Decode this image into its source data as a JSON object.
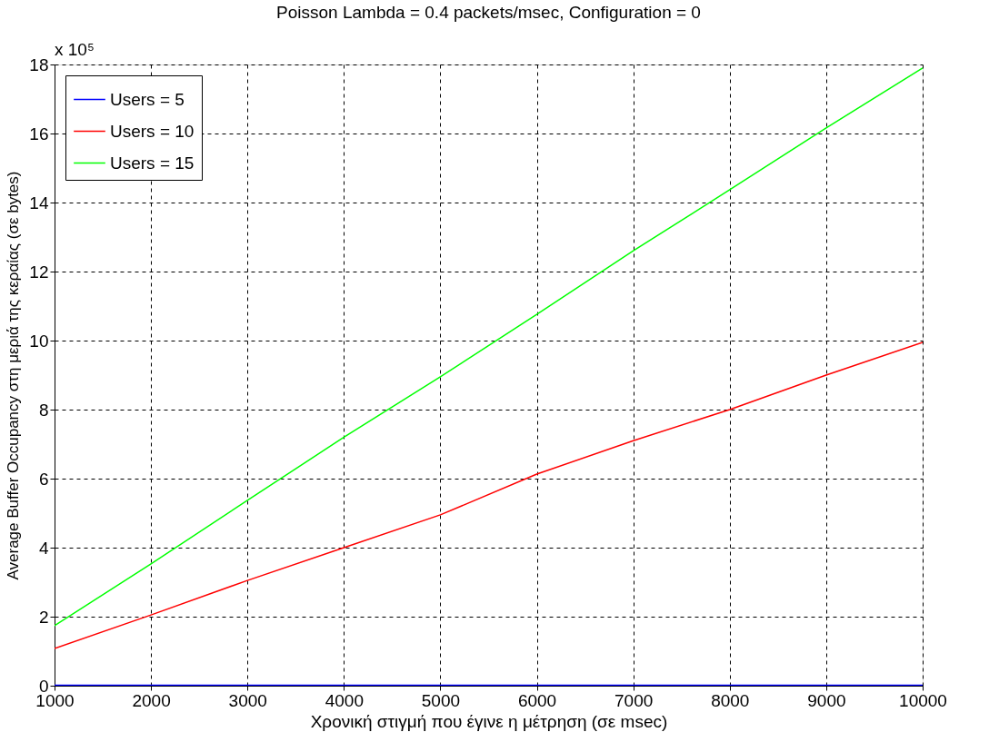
{
  "chart_data": {
    "type": "line",
    "title": "Poisson Lambda = 0.4 packets/msec, Configuration = 0",
    "xlabel": "Χρονική στιγμή που έγινε η μέτρηση (σε msec)",
    "ylabel": "Average Buffer Occupancy στη μεριά της κεραίας (σε bytes)",
    "annotations": [
      "x 10⁵"
    ],
    "x": [
      1000,
      2000,
      3000,
      4000,
      5000,
      6000,
      7000,
      8000,
      9000,
      10000
    ],
    "series": [
      {
        "name": "Users = 5",
        "color": "#0000ff",
        "values": [
          0.01,
          0.01,
          0.01,
          0.01,
          0.01,
          0.01,
          0.01,
          0.01,
          0.01,
          0.01
        ]
      },
      {
        "name": "Users = 10",
        "color": "#ff0000",
        "values": [
          1.08,
          2.05,
          3.05,
          4.0,
          4.95,
          6.13,
          7.1,
          8.0,
          9.0,
          9.95
        ]
      },
      {
        "name": "Users = 15",
        "color": "#00ff00",
        "values": [
          1.74,
          3.53,
          5.37,
          7.2,
          8.95,
          10.76,
          12.6,
          14.37,
          16.16,
          17.9
        ]
      }
    ],
    "xlim": [
      1000,
      10000
    ],
    "xticks": [
      1000,
      2000,
      3000,
      4000,
      5000,
      6000,
      7000,
      8000,
      9000,
      10000
    ],
    "ylim": [
      0,
      18
    ],
    "yticks": [
      0,
      2,
      4,
      6,
      8,
      10,
      12,
      14,
      16,
      18
    ],
    "grid": true,
    "legend": "top left"
  }
}
